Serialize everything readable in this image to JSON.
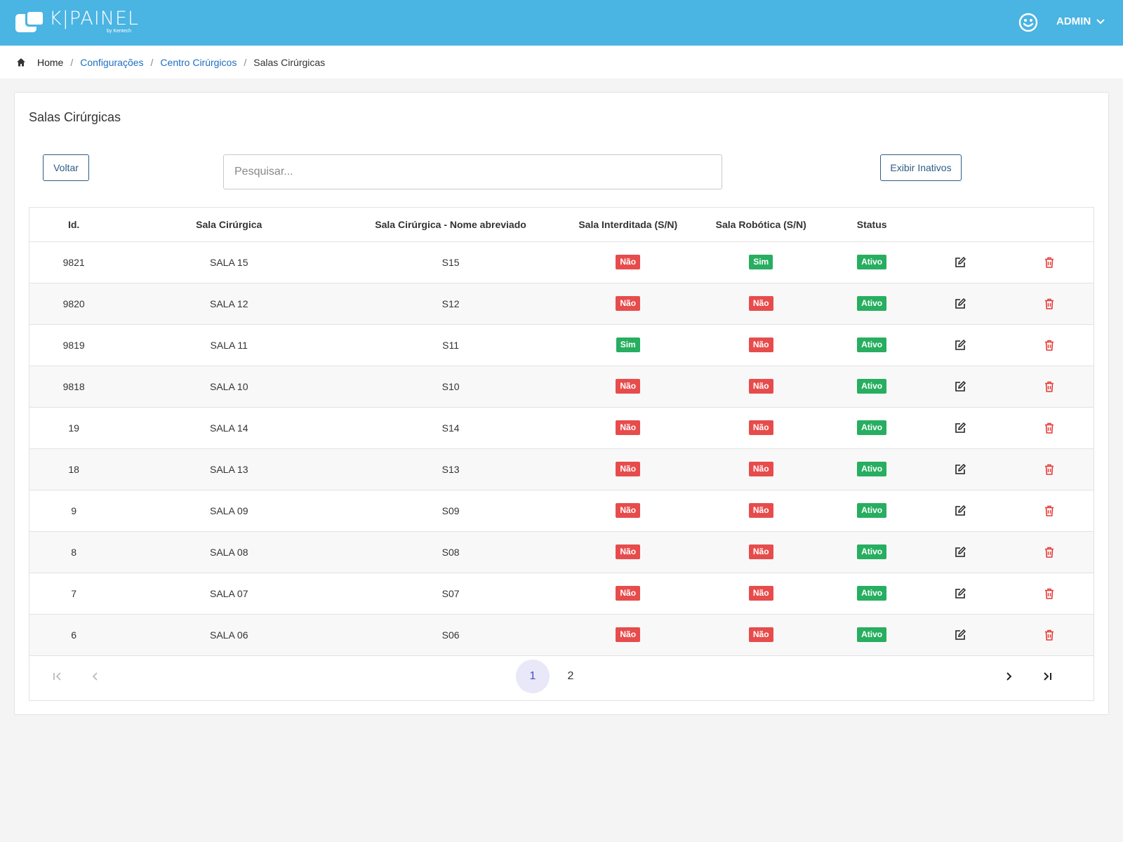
{
  "app": {
    "logo_text": "K|PAINEL",
    "logo_sub": "by Kentech",
    "user": "ADMIN"
  },
  "breadcrumb": {
    "home": "Home",
    "configuracoes": "Configurações",
    "centro": "Centro Cirúrgicos",
    "current": "Salas Cirúrgicas"
  },
  "page": {
    "title": "Salas Cirúrgicas",
    "back_label": "Voltar",
    "search_placeholder": "Pesquisar...",
    "show_inactive_label": "Exibir Inativos"
  },
  "table": {
    "headers": {
      "id": "Id.",
      "sala": "Sala Cirúrgica",
      "abrev": "Sala Cirúrgica - Nome abreviado",
      "interditada": "Sala Interditada (S/N)",
      "robotica": "Sala Robótica (S/N)",
      "status": "Status"
    },
    "rows": [
      {
        "id": "9821",
        "sala": "SALA 15",
        "abrev": "S15",
        "interditada": "Não",
        "robotica": "Sim",
        "status": "Ativo"
      },
      {
        "id": "9820",
        "sala": "SALA 12",
        "abrev": "S12",
        "interditada": "Não",
        "robotica": "Não",
        "status": "Ativo"
      },
      {
        "id": "9819",
        "sala": "SALA 11",
        "abrev": "S11",
        "interditada": "Sim",
        "robotica": "Não",
        "status": "Ativo"
      },
      {
        "id": "9818",
        "sala": "SALA 10",
        "abrev": "S10",
        "interditada": "Não",
        "robotica": "Não",
        "status": "Ativo"
      },
      {
        "id": "19",
        "sala": "SALA 14",
        "abrev": "S14",
        "interditada": "Não",
        "robotica": "Não",
        "status": "Ativo"
      },
      {
        "id": "18",
        "sala": "SALA 13",
        "abrev": "S13",
        "interditada": "Não",
        "robotica": "Não",
        "status": "Ativo"
      },
      {
        "id": "9",
        "sala": "SALA 09",
        "abrev": "S09",
        "interditada": "Não",
        "robotica": "Não",
        "status": "Ativo"
      },
      {
        "id": "8",
        "sala": "SALA 08",
        "abrev": "S08",
        "interditada": "Não",
        "robotica": "Não",
        "status": "Ativo"
      },
      {
        "id": "7",
        "sala": "SALA 07",
        "abrev": "S07",
        "interditada": "Não",
        "robotica": "Não",
        "status": "Ativo"
      },
      {
        "id": "6",
        "sala": "SALA 06",
        "abrev": "S06",
        "interditada": "Não",
        "robotica": "Não",
        "status": "Ativo"
      }
    ]
  },
  "pagination": {
    "pages": [
      "1",
      "2"
    ],
    "current": "1"
  },
  "colors": {
    "topbar": "#4ab4e3",
    "badge_no": "#e74c4c",
    "badge_yes": "#27ae60",
    "link": "#1e6fbf",
    "outline_button": "#2d5b86",
    "delete_icon": "#e53935"
  }
}
